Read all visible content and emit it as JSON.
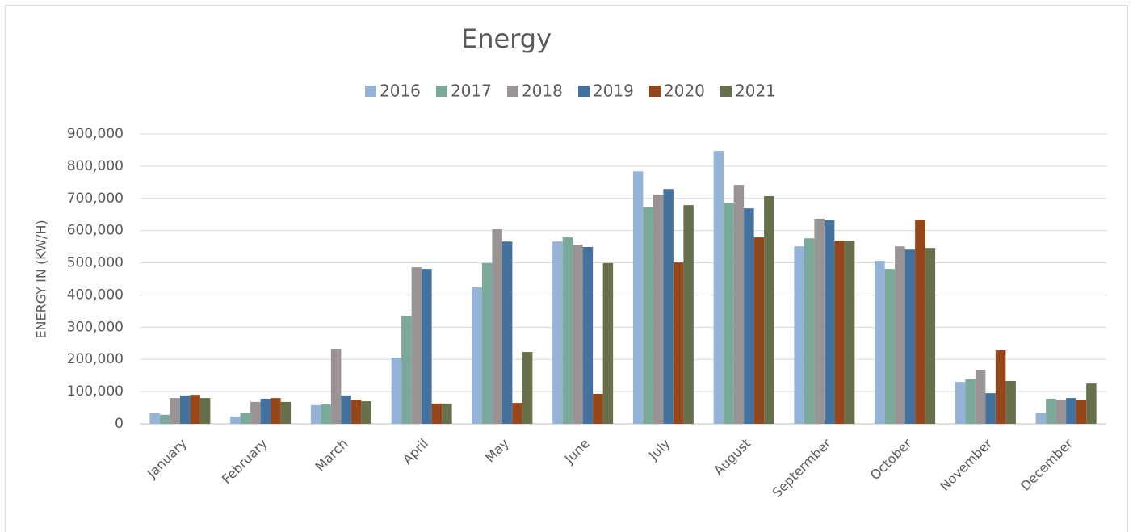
{
  "chart_data": {
    "type": "bar",
    "title": "Energy",
    "y_label": "ENERGY IN (KW/H)",
    "categories": [
      "January",
      "February",
      "March",
      "April",
      "May",
      "June",
      "July",
      "August",
      "Septermber",
      "October",
      "November",
      "December"
    ],
    "series": [
      {
        "name": "2016",
        "color": "#95b3d7",
        "values": [
          33000,
          23000,
          58000,
          205000,
          424000,
          566000,
          784000,
          847000,
          551000,
          506000,
          130000,
          33000
        ]
      },
      {
        "name": "2017",
        "color": "#7aa89a",
        "values": [
          28000,
          33000,
          60000,
          336000,
          499000,
          579000,
          674000,
          687000,
          576000,
          481000,
          138000,
          78000
        ]
      },
      {
        "name": "2018",
        "color": "#9a9394",
        "values": [
          80000,
          68000,
          233000,
          486000,
          604000,
          556000,
          712000,
          742000,
          637000,
          551000,
          168000,
          73000
        ]
      },
      {
        "name": "2019",
        "color": "#44729e",
        "values": [
          88000,
          78000,
          88000,
          481000,
          566000,
          549000,
          729000,
          669000,
          632000,
          541000,
          95000,
          80000
        ]
      },
      {
        "name": "2020",
        "color": "#96461b",
        "values": [
          90000,
          80000,
          75000,
          63000,
          65000,
          93000,
          501000,
          579000,
          569000,
          634000,
          228000,
          73000
        ]
      },
      {
        "name": "2021",
        "color": "#66704a",
        "values": [
          80000,
          68000,
          70000,
          63000,
          223000,
          499000,
          679000,
          707000,
          569000,
          546000,
          133000,
          125000
        ]
      }
    ],
    "ylim": [
      0,
      900000
    ],
    "yticks": [
      0,
      {
        "value": 100000,
        "label": "100,000"
      },
      {
        "value": 200000,
        "label": "200,000"
      },
      {
        "value": 300000,
        "label": "300,000"
      },
      {
        "value": 400000,
        "label": "400,000"
      },
      {
        "value": 500000,
        "label": "500,000"
      },
      {
        "value": 600000,
        "label": "600,000"
      },
      {
        "value": 700000,
        "label": "700,000"
      },
      {
        "value": 800000,
        "label": "800,000"
      },
      {
        "value": 900000,
        "label": "900,000"
      }
    ],
    "grid": true,
    "legend": "top"
  }
}
